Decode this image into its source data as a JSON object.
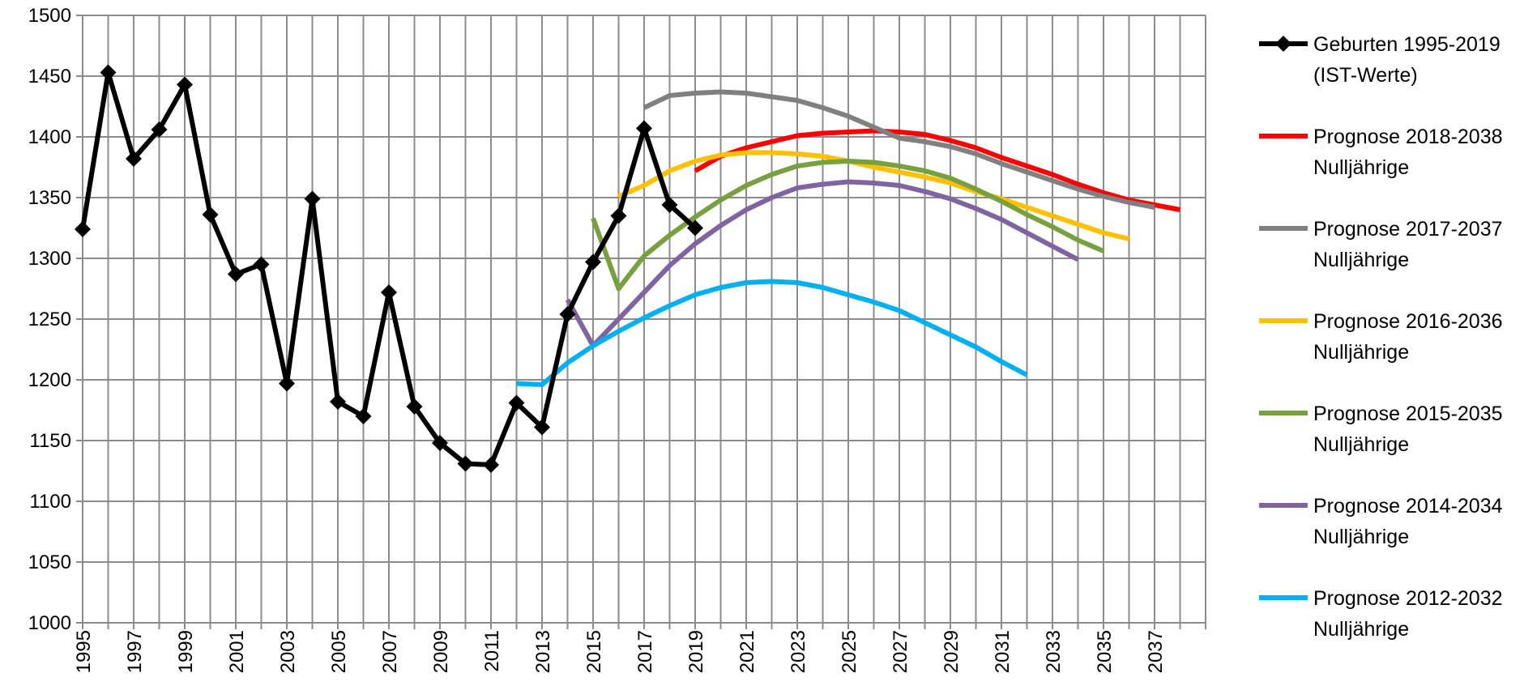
{
  "chart_data": {
    "type": "line",
    "x": [
      1995,
      1996,
      1997,
      1998,
      1999,
      2000,
      2001,
      2002,
      2003,
      2004,
      2005,
      2006,
      2007,
      2008,
      2009,
      2010,
      2011,
      2012,
      2013,
      2014,
      2015,
      2016,
      2017,
      2018,
      2019,
      2020,
      2021,
      2022,
      2023,
      2024,
      2025,
      2026,
      2027,
      2028,
      2029,
      2030,
      2031,
      2032,
      2033,
      2034,
      2035,
      2036,
      2037,
      2038
    ],
    "xlim": [
      1995,
      2038
    ],
    "ylim": [
      1000,
      1500
    ],
    "y_ticks": [
      1000,
      1050,
      1100,
      1150,
      1200,
      1250,
      1300,
      1350,
      1400,
      1450,
      1500
    ],
    "x_tick_labels": [
      "1995",
      "1997",
      "1999",
      "2001",
      "2003",
      "2005",
      "2007",
      "2009",
      "2011",
      "2013",
      "2015",
      "2017",
      "2019",
      "2021",
      "2023",
      "2025",
      "2027",
      "2029",
      "2031",
      "2033",
      "2035",
      "2037"
    ],
    "grid": true,
    "legend_position": "right",
    "series": [
      {
        "name": [
          "Geburten 1995-2019",
          "(IST-Werte)"
        ],
        "color": "#000000",
        "marker": "diamond",
        "points": [
          [
            1995,
            1324
          ],
          [
            1996,
            1453
          ],
          [
            1997,
            1382
          ],
          [
            1998,
            1406
          ],
          [
            1999,
            1443
          ],
          [
            2000,
            1336
          ],
          [
            2001,
            1287
          ],
          [
            2002,
            1295
          ],
          [
            2003,
            1197
          ],
          [
            2004,
            1349
          ],
          [
            2005,
            1182
          ],
          [
            2006,
            1170
          ],
          [
            2007,
            1272
          ],
          [
            2008,
            1178
          ],
          [
            2009,
            1148
          ],
          [
            2010,
            1131
          ],
          [
            2011,
            1130
          ],
          [
            2012,
            1181
          ],
          [
            2013,
            1161
          ],
          [
            2014,
            1254
          ],
          [
            2015,
            1297
          ],
          [
            2016,
            1335
          ],
          [
            2017,
            1407
          ],
          [
            2018,
            1344
          ],
          [
            2019,
            1325
          ]
        ]
      },
      {
        "name": [
          "Prognose 2018-2038",
          "Nulljährige"
        ],
        "color": "#ff0000",
        "points": [
          [
            2019,
            1372
          ],
          [
            2020,
            1384
          ],
          [
            2021,
            1391
          ],
          [
            2022,
            1396
          ],
          [
            2023,
            1401
          ],
          [
            2024,
            1403
          ],
          [
            2025,
            1404
          ],
          [
            2026,
            1405
          ],
          [
            2027,
            1404
          ],
          [
            2028,
            1402
          ],
          [
            2029,
            1397
          ],
          [
            2030,
            1391
          ],
          [
            2031,
            1383
          ],
          [
            2032,
            1376
          ],
          [
            2033,
            1369
          ],
          [
            2034,
            1361
          ],
          [
            2035,
            1354
          ],
          [
            2036,
            1348
          ],
          [
            2037,
            1344
          ],
          [
            2038,
            1340
          ]
        ]
      },
      {
        "name": [
          "Prognose 2017-2037",
          "Nulljährige"
        ],
        "color": "#808080",
        "points": [
          [
            2017,
            1424
          ],
          [
            2018,
            1434
          ],
          [
            2019,
            1436
          ],
          [
            2020,
            1437
          ],
          [
            2021,
            1436
          ],
          [
            2022,
            1433
          ],
          [
            2023,
            1430
          ],
          [
            2024,
            1424
          ],
          [
            2025,
            1417
          ],
          [
            2026,
            1408
          ],
          [
            2027,
            1399
          ],
          [
            2028,
            1396
          ],
          [
            2029,
            1392
          ],
          [
            2030,
            1386
          ],
          [
            2031,
            1378
          ],
          [
            2032,
            1371
          ],
          [
            2033,
            1364
          ],
          [
            2034,
            1357
          ],
          [
            2035,
            1351
          ],
          [
            2036,
            1346
          ],
          [
            2037,
            1342
          ]
        ]
      },
      {
        "name": [
          "Prognose 2016-2036",
          "Nulljährige"
        ],
        "color": "#ffc000",
        "points": [
          [
            2016,
            1351
          ],
          [
            2017,
            1360
          ],
          [
            2018,
            1372
          ],
          [
            2019,
            1380
          ],
          [
            2020,
            1385
          ],
          [
            2021,
            1387
          ],
          [
            2022,
            1387
          ],
          [
            2023,
            1386
          ],
          [
            2024,
            1384
          ],
          [
            2025,
            1380
          ],
          [
            2026,
            1375
          ],
          [
            2027,
            1371
          ],
          [
            2028,
            1367
          ],
          [
            2029,
            1362
          ],
          [
            2030,
            1355
          ],
          [
            2031,
            1349
          ],
          [
            2032,
            1342
          ],
          [
            2033,
            1335
          ],
          [
            2034,
            1328
          ],
          [
            2035,
            1321
          ],
          [
            2036,
            1316
          ]
        ]
      },
      {
        "name": [
          "Prognose 2015-2035",
          "Nulljährige"
        ],
        "color": "#77a03f",
        "points": [
          [
            2015,
            1333
          ],
          [
            2016,
            1275
          ],
          [
            2017,
            1302
          ],
          [
            2018,
            1319
          ],
          [
            2019,
            1334
          ],
          [
            2020,
            1348
          ],
          [
            2021,
            1360
          ],
          [
            2022,
            1369
          ],
          [
            2023,
            1376
          ],
          [
            2024,
            1379
          ],
          [
            2025,
            1380
          ],
          [
            2026,
            1379
          ],
          [
            2027,
            1376
          ],
          [
            2028,
            1372
          ],
          [
            2029,
            1366
          ],
          [
            2030,
            1357
          ],
          [
            2031,
            1347
          ],
          [
            2032,
            1336
          ],
          [
            2033,
            1326
          ],
          [
            2034,
            1315
          ],
          [
            2035,
            1306
          ]
        ]
      },
      {
        "name": [
          "Prognose 2014-2034",
          "Nulljährige"
        ],
        "color": "#8064a2",
        "points": [
          [
            2014,
            1266
          ],
          [
            2015,
            1228
          ],
          [
            2016,
            1250
          ],
          [
            2017,
            1272
          ],
          [
            2018,
            1294
          ],
          [
            2019,
            1312
          ],
          [
            2020,
            1327
          ],
          [
            2021,
            1340
          ],
          [
            2022,
            1350
          ],
          [
            2023,
            1358
          ],
          [
            2024,
            1361
          ],
          [
            2025,
            1363
          ],
          [
            2026,
            1362
          ],
          [
            2027,
            1360
          ],
          [
            2028,
            1355
          ],
          [
            2029,
            1349
          ],
          [
            2030,
            1341
          ],
          [
            2031,
            1332
          ],
          [
            2032,
            1321
          ],
          [
            2033,
            1310
          ],
          [
            2034,
            1299
          ]
        ]
      },
      {
        "name": [
          "Prognose 2012-2032",
          "Nulljährige"
        ],
        "color": "#00b0f0",
        "points": [
          [
            2012,
            1197
          ],
          [
            2013,
            1196
          ],
          [
            2014,
            1214
          ],
          [
            2015,
            1228
          ],
          [
            2016,
            1240
          ],
          [
            2017,
            1251
          ],
          [
            2018,
            1261
          ],
          [
            2019,
            1270
          ],
          [
            2020,
            1276
          ],
          [
            2021,
            1280
          ],
          [
            2022,
            1281
          ],
          [
            2023,
            1280
          ],
          [
            2024,
            1276
          ],
          [
            2025,
            1270
          ],
          [
            2026,
            1264
          ],
          [
            2027,
            1257
          ],
          [
            2028,
            1247
          ],
          [
            2029,
            1237
          ],
          [
            2030,
            1227
          ],
          [
            2031,
            1215
          ],
          [
            2032,
            1204
          ]
        ]
      }
    ]
  }
}
